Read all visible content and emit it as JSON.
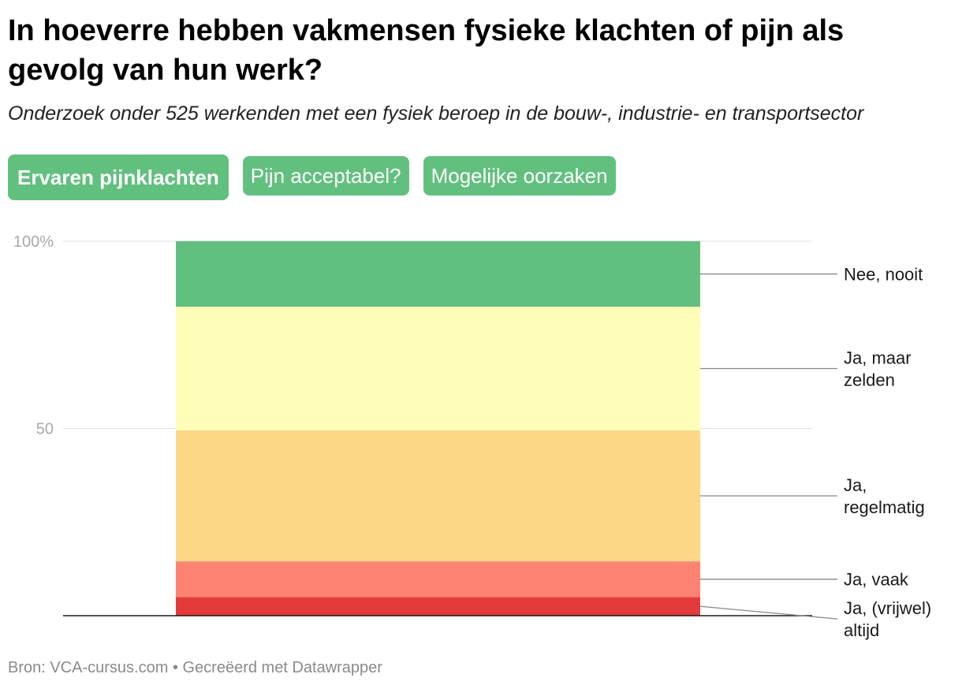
{
  "title": "In hoeverre hebben vakmensen fysieke klachten of pijn als gevolg van hun werk?",
  "subtitle": "Onderzoek onder 525 werkenden met een fysiek beroep in de bouw-, industrie- en transportsector",
  "tabs": [
    {
      "label": "Ervaren pijnklachten",
      "active": true
    },
    {
      "label": "Pijn acceptabel?",
      "active": false
    },
    {
      "label": "Mogelijke oorzaken",
      "active": false
    }
  ],
  "footer": "Bron: VCA-cursus.com • Gecreëerd met Datawrapper",
  "chart_data": {
    "type": "bar",
    "stacked": true,
    "categories": [
      ""
    ],
    "ylim": [
      0,
      100
    ],
    "yticks": [
      {
        "value": 100,
        "label": "100%"
      },
      {
        "value": 50,
        "label": "50"
      }
    ],
    "grid": true,
    "series": [
      {
        "name": "Ja, (vrijwel) altijd",
        "label_lines": [
          "Ja, (vrijwel)",
          "altijd"
        ],
        "value": 5,
        "color": "#e33b3b"
      },
      {
        "name": "Ja, vaak",
        "label_lines": [
          "Ja, vaak"
        ],
        "value": 9.5,
        "color": "#fe8271"
      },
      {
        "name": "Ja, regelmatig",
        "label_lines": [
          "Ja,",
          "regelmatig"
        ],
        "value": 35,
        "color": "#fcd786"
      },
      {
        "name": "Ja, maar zelden",
        "label_lines": [
          "Ja, maar",
          "zelden"
        ],
        "value": 33,
        "color": "#fefeb8"
      },
      {
        "name": "Nee, nooit",
        "label_lines": [
          "Nee, nooit"
        ],
        "value": 17.5,
        "color": "#62c07f"
      }
    ]
  }
}
